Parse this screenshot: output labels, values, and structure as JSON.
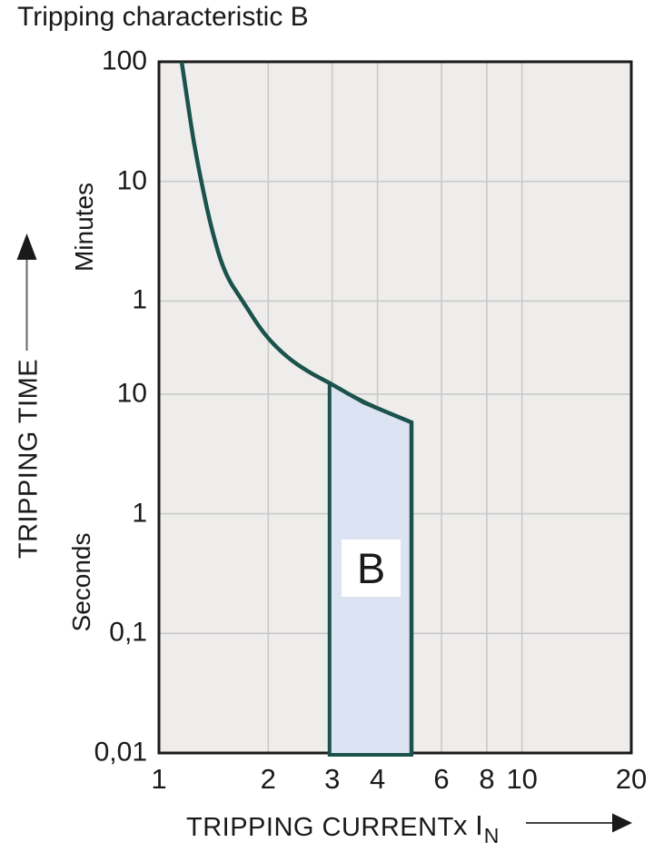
{
  "page": {
    "background": "#ffffff"
  },
  "colors": {
    "text": "#1a1a1a",
    "axis_frame": "#1a1a1a",
    "plot_background": "#eeedec",
    "gridline": "#c9c9c9",
    "curve": "#1b524c",
    "band_fill": "#dce4f3",
    "band_stroke": "#1b524c",
    "band_label_background": "#ffffff",
    "arrow_line": "#666666",
    "arrow_head": "#1a1a1a"
  },
  "chart_data": {
    "type": "line",
    "title": "Tripping characteristic B",
    "grid": true,
    "x_axis": {
      "label": "TRIPPING CURRENT",
      "unit_prefix": "x I",
      "unit_subscript": "N",
      "scale": "log",
      "range": [
        1,
        20
      ],
      "tick_labels": [
        "1",
        "2",
        "3",
        "4",
        "6",
        "8",
        "10",
        "20"
      ],
      "tick_values": [
        1,
        2,
        3,
        4,
        6,
        8,
        10,
        20
      ],
      "gridline_values": [
        2,
        3,
        4,
        6,
        8,
        10
      ]
    },
    "y_axis": {
      "label": "TRIPPING TIME",
      "unit_upper": "Minutes",
      "unit_lower": "Seconds",
      "scale": "log",
      "range_seconds": [
        0.01,
        6000
      ],
      "ticks": [
        {
          "label": "100",
          "seconds": 6000
        },
        {
          "label": "10",
          "seconds": 600
        },
        {
          "label": "1",
          "seconds": 60
        },
        {
          "label": "10",
          "seconds": 10
        },
        {
          "label": "1",
          "seconds": 1
        },
        {
          "label": "0,1",
          "seconds": 0.1
        },
        {
          "label": "0,01",
          "seconds": 0.01
        }
      ]
    },
    "series": [
      {
        "name": "B-characteristic tripping curve",
        "points_x_multiple_of_In_vs_seconds": [
          [
            1.155,
            6000
          ],
          [
            1.196,
            2900
          ],
          [
            1.245,
            1300
          ],
          [
            1.31,
            580
          ],
          [
            1.4,
            230
          ],
          [
            1.52,
            100
          ],
          [
            1.7,
            60
          ],
          [
            1.94,
            32
          ],
          [
            2.24,
            20.5
          ],
          [
            2.59,
            15.2
          ],
          [
            2.95,
            12.4
          ],
          [
            3.66,
            8.5
          ],
          [
            4.96,
            5.8
          ],
          [
            4.96,
            0.01
          ]
        ]
      }
    ],
    "band": {
      "label": "B",
      "x_range_multiple_of_In": [
        3,
        5
      ],
      "bottom_seconds": 0.01,
      "top_points_x_vs_seconds": [
        [
          2.95,
          12.4
        ],
        [
          3.66,
          8.5
        ],
        [
          4.96,
          5.8
        ]
      ]
    }
  }
}
